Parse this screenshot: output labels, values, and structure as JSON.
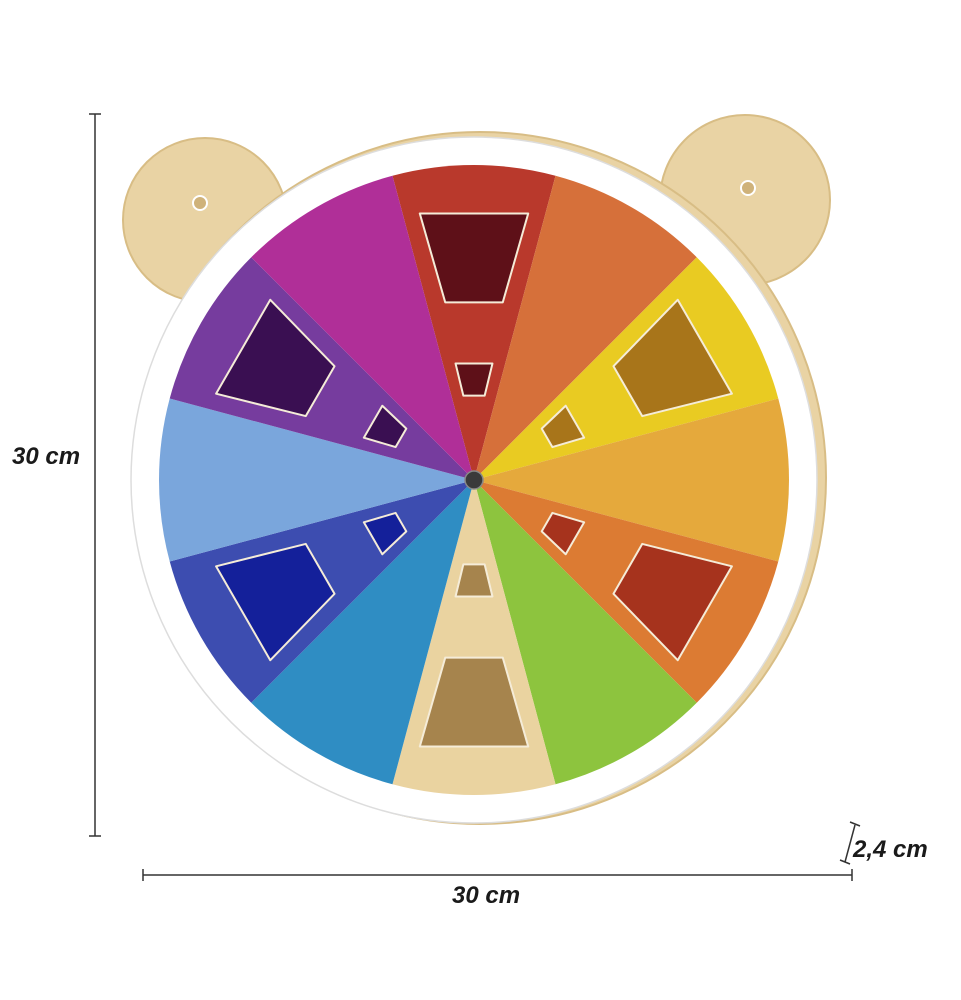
{
  "dimensions": {
    "height_label": "30 cm",
    "width_label": "30 cm",
    "depth_label": "2,4 cm"
  },
  "colors": {
    "wood": "#e9d3a4",
    "rim": "#ffffff",
    "hub": "#3a3a3a",
    "sectors": [
      "#b9392c",
      "#d6703a",
      "#e9cb22",
      "#e5a93c",
      "#dc7b33",
      "#8dc43e",
      "#ead3a0",
      "#2f8dc3",
      "#3d4db0",
      "#7aa6dc",
      "#763c9e",
      "#b02f98"
    ],
    "holes": [
      "#5e1018",
      "#a8751a",
      "#a6331d",
      "#a6844d",
      "#14209a",
      "#3a0f52"
    ]
  }
}
